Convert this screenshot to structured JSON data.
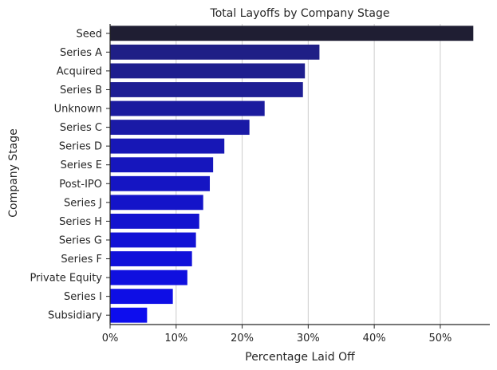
{
  "chart_data": {
    "type": "bar",
    "orientation": "horizontal",
    "title": "Total Layoffs by Company Stage",
    "xlabel": "Percentage Laid Off",
    "ylabel": "Company Stage",
    "xlim": [
      0,
      0.575
    ],
    "xticks": [
      0,
      0.1,
      0.2,
      0.3,
      0.4,
      0.5
    ],
    "xtick_labels": [
      "0%",
      "10%",
      "20%",
      "30%",
      "40%",
      "50%"
    ],
    "grid": "x",
    "legend": "none",
    "categories": [
      "Seed",
      "Series A",
      "Acquired",
      "Series B",
      "Unknown",
      "Series C",
      "Series D",
      "Series E",
      "Post-IPO",
      "Series J",
      "Series H",
      "Series G",
      "Series F",
      "Private Equity",
      "Series I",
      "Subsidiary"
    ],
    "values": [
      0.55,
      0.317,
      0.295,
      0.292,
      0.234,
      0.211,
      0.173,
      0.156,
      0.151,
      0.141,
      0.135,
      0.13,
      0.124,
      0.117,
      0.095,
      0.056
    ],
    "colors": [
      "#1f1e33",
      "#1f1f86",
      "#1e1e8e",
      "#1e1e94",
      "#1b1b9e",
      "#1a1aa6",
      "#1717b6",
      "#1616bd",
      "#1515c3",
      "#1414c9",
      "#1313cf",
      "#1212d5",
      "#1111da",
      "#1010df",
      "#0e0ee5",
      "#0d0dee"
    ]
  }
}
